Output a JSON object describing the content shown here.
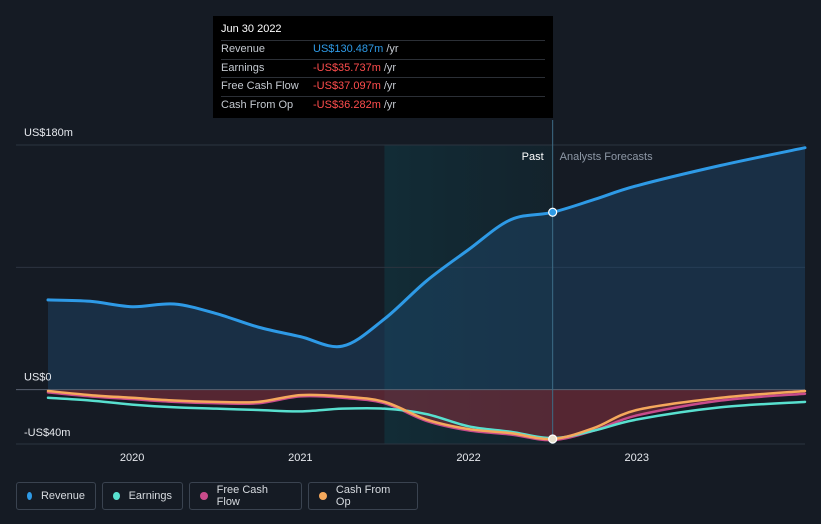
{
  "colors": {
    "revenue": "#2e9ae6",
    "earnings": "#58e0cf",
    "free_cash_flow": "#c84b8b",
    "cash_from_op": "#f5a85c"
  },
  "tooltip": {
    "date": "Jun 30 2022",
    "rows": [
      {
        "label": "Revenue",
        "value": "US$130.487m",
        "unit": "/yr"
      },
      {
        "label": "Earnings",
        "value": "-US$35.737m",
        "unit": "/yr"
      },
      {
        "label": "Free Cash Flow",
        "value": "-US$37.097m",
        "unit": "/yr"
      },
      {
        "label": "Cash From Op",
        "value": "-US$36.282m",
        "unit": "/yr"
      }
    ]
  },
  "legend": [
    {
      "label": "Revenue",
      "color": "#2e9ae6",
      "icon": "revenue-dot-icon"
    },
    {
      "label": "Earnings",
      "color": "#58e0cf",
      "icon": "earnings-dot-icon"
    },
    {
      "label": "Free Cash Flow",
      "color": "#c84b8b",
      "icon": "free-cash-flow-dot-icon"
    },
    {
      "label": "Cash From Op",
      "color": "#f5a85c",
      "icon": "cash-from-op-dot-icon"
    }
  ],
  "chart_data": {
    "type": "area",
    "title": "",
    "xlabel": "",
    "ylabel": "",
    "xlim": [
      2019.5,
      2024.0
    ],
    "ylim": [
      -40,
      180
    ],
    "y_tick_labels": [
      {
        "value": 180,
        "label": "US$180m"
      },
      {
        "value": 0,
        "label": "US$0"
      },
      {
        "value": -40,
        "label": "-US$40m"
      }
    ],
    "x_tick_labels": [
      {
        "value": 2020.0,
        "label": "2020"
      },
      {
        "value": 2021.0,
        "label": "2021"
      },
      {
        "value": 2022.0,
        "label": "2022"
      },
      {
        "value": 2023.0,
        "label": "2023"
      }
    ],
    "past_label": "Past",
    "forecast_label": "Analysts Forecasts",
    "divider_x": 2022.5,
    "highlight_start_x": 2021.5,
    "series": [
      {
        "name": "Revenue",
        "color": "#2e9ae6",
        "x": [
          2019.5,
          2019.75,
          2020.0,
          2020.25,
          2020.5,
          2020.75,
          2021.0,
          2021.25,
          2021.5,
          2021.75,
          2022.0,
          2022.25,
          2022.5,
          2022.75,
          2023.0,
          2023.5,
          2024.0
        ],
        "values": [
          66,
          65,
          61,
          63,
          56,
          46,
          39,
          32,
          52,
          80,
          103,
          125,
          130.5,
          140,
          150,
          165,
          178
        ]
      },
      {
        "name": "Earnings",
        "color": "#58e0cf",
        "x": [
          2019.5,
          2019.75,
          2020.0,
          2020.25,
          2020.5,
          2020.75,
          2021.0,
          2021.25,
          2021.5,
          2021.75,
          2022.0,
          2022.25,
          2022.5,
          2022.75,
          2023.0,
          2023.5,
          2024.0
        ],
        "values": [
          -6,
          -8,
          -11,
          -13,
          -14,
          -15,
          -16,
          -14,
          -14,
          -18,
          -27,
          -31,
          -35.7,
          -30,
          -22,
          -13,
          -9
        ]
      },
      {
        "name": "Free Cash Flow",
        "color": "#c84b8b",
        "x": [
          2019.5,
          2019.75,
          2020.0,
          2020.25,
          2020.5,
          2020.75,
          2021.0,
          2021.25,
          2021.5,
          2021.75,
          2022.0,
          2022.25,
          2022.5,
          2022.75,
          2023.0,
          2023.5,
          2024.0
        ],
        "values": [
          -2,
          -5,
          -7,
          -9,
          -10,
          -10,
          -5,
          -6,
          -10,
          -23,
          -30,
          -33,
          -37.1,
          -30,
          -19,
          -8,
          -3
        ]
      },
      {
        "name": "Cash From Op",
        "color": "#f5a85c",
        "x": [
          2019.5,
          2019.75,
          2020.0,
          2020.25,
          2020.5,
          2020.75,
          2021.0,
          2021.25,
          2021.5,
          2021.75,
          2022.0,
          2022.25,
          2022.5,
          2022.75,
          2023.0,
          2023.5,
          2024.0
        ],
        "values": [
          -1,
          -4,
          -6,
          -8,
          -9,
          -9,
          -4,
          -5,
          -9,
          -22,
          -29,
          -32,
          -36.3,
          -28,
          -15,
          -6,
          -1
        ]
      }
    ]
  }
}
